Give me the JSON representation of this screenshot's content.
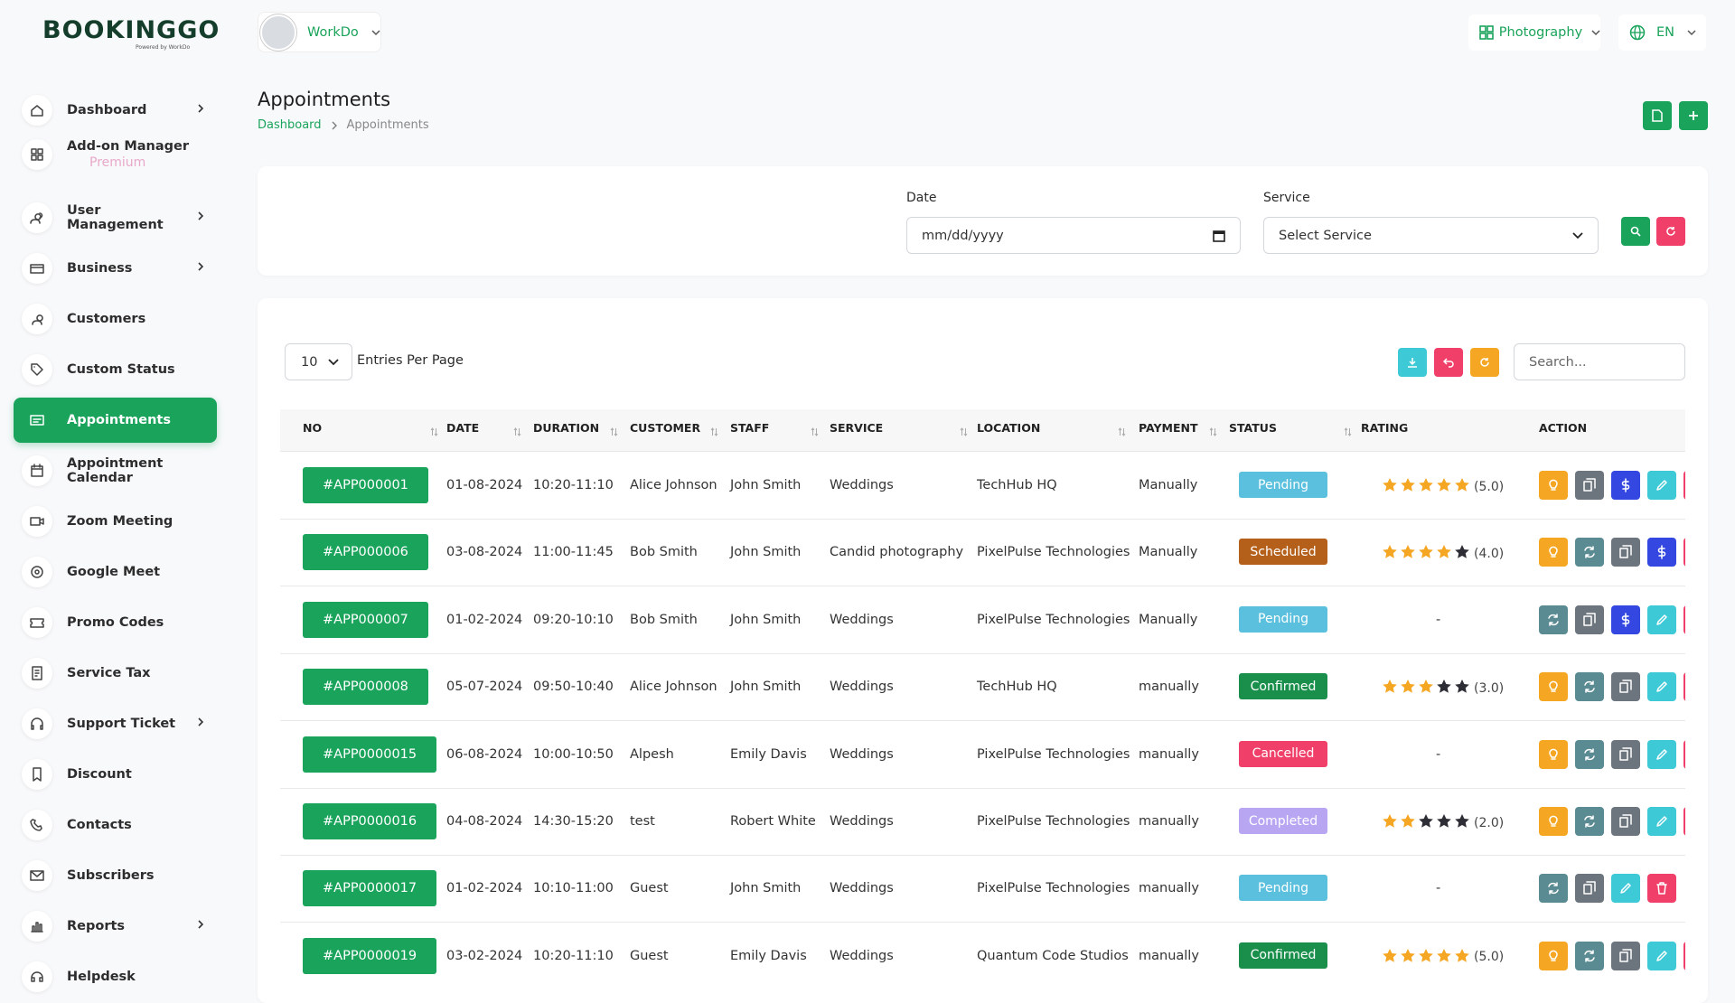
{
  "brand": {
    "logo": "BOOKINGGO",
    "tagline": "Powered by WorkDo"
  },
  "header": {
    "user": "WorkDo",
    "business": "Photography",
    "language": "EN"
  },
  "sidebar": [
    {
      "label": "Dashboard",
      "submenu": true
    },
    {
      "label": "Add-on Manager",
      "badge": "Premium"
    },
    {
      "label": "User Management",
      "submenu": true
    },
    {
      "label": "Business",
      "submenu": true
    },
    {
      "label": "Customers"
    },
    {
      "label": "Custom Status"
    },
    {
      "label": "Appointments",
      "active": true
    },
    {
      "label": "Appointment Calendar"
    },
    {
      "label": "Zoom Meeting"
    },
    {
      "label": "Google Meet"
    },
    {
      "label": "Promo Codes"
    },
    {
      "label": "Service Tax"
    },
    {
      "label": "Support Ticket",
      "submenu": true
    },
    {
      "label": "Discount"
    },
    {
      "label": "Contacts"
    },
    {
      "label": "Subscribers"
    },
    {
      "label": "Reports",
      "submenu": true
    },
    {
      "label": "Helpdesk"
    }
  ],
  "page": {
    "title": "Appointments",
    "breadcrumb": [
      "Dashboard",
      "Appointments"
    ]
  },
  "filters": {
    "date_label": "Date",
    "date_placeholder": "mm/dd/yyyy",
    "service_label": "Service",
    "service_placeholder": "Select Service"
  },
  "table": {
    "entries": "10",
    "entries_label": "Entries Per Page",
    "search_placeholder": "Search...",
    "columns": [
      "NO",
      "DATE",
      "DURATION",
      "CUSTOMER",
      "STAFF",
      "SERVICE",
      "LOCATION",
      "PAYMENT",
      "STATUS",
      "RATING",
      "ACTION"
    ],
    "status_colors": {
      "Pending": "#5bc0de",
      "Scheduled": "#b4601a",
      "Confirmed": "#1a8f4c",
      "Cancelled": "#f0406a",
      "Completed": "#b9a6f3"
    },
    "rows": [
      {
        "no": "#APP000001",
        "date": "01-08-2024",
        "duration": "10:20-11:10",
        "customer": "Alice Johnson",
        "staff": "John Smith",
        "service": "Weddings",
        "location": "TechHub HQ",
        "payment": "Manually",
        "status": "Pending",
        "rating": {
          "value": 5,
          "label": "(5.0)"
        }
      },
      {
        "no": "#APP000006",
        "date": "03-08-2024",
        "duration": "11:00-11:45",
        "customer": "Bob Smith",
        "staff": "John Smith",
        "service": "Candid photography",
        "location": "PixelPulse Technologies",
        "payment": "Manually",
        "status": "Scheduled",
        "rating": {
          "value": 4,
          "label": "(4.0)"
        }
      },
      {
        "no": "#APP000007",
        "date": "01-02-2024",
        "duration": "09:20-10:10",
        "customer": "Bob Smith",
        "staff": "John Smith",
        "service": "Weddings",
        "location": "PixelPulse Technologies",
        "payment": "Manually",
        "status": "Pending",
        "rating": "-"
      },
      {
        "no": "#APP000008",
        "date": "05-07-2024",
        "duration": "09:50-10:40",
        "customer": "Alice Johnson",
        "staff": "John Smith",
        "service": "Weddings",
        "location": "TechHub HQ",
        "payment": "manually",
        "status": "Confirmed",
        "rating": {
          "value": 3,
          "label": "(3.0)"
        }
      },
      {
        "no": "#APP0000015",
        "date": "06-08-2024",
        "duration": "10:00-10:50",
        "customer": "Alpesh",
        "staff": "Emily Davis",
        "service": "Weddings",
        "location": "PixelPulse Technologies",
        "payment": "manually",
        "status": "Cancelled",
        "rating": "-"
      },
      {
        "no": "#APP0000016",
        "date": "04-08-2024",
        "duration": "14:30-15:20",
        "customer": "test",
        "staff": "Robert White",
        "service": "Weddings",
        "location": "PixelPulse Technologies",
        "payment": "manually",
        "status": "Completed",
        "rating": {
          "value": 2,
          "label": "(2.0)"
        }
      },
      {
        "no": "#APP0000017",
        "date": "01-02-2024",
        "duration": "10:10-11:00",
        "customer": "Guest",
        "staff": "John Smith",
        "service": "Weddings",
        "location": "PixelPulse Technologies",
        "payment": "manually",
        "status": "Pending",
        "rating": "-"
      },
      {
        "no": "#APP0000019",
        "date": "03-02-2024",
        "duration": "10:20-11:10",
        "customer": "Guest",
        "staff": "Emily Davis",
        "service": "Weddings",
        "location": "Quantum Code Studios",
        "payment": "manually",
        "status": "Confirmed",
        "rating": {
          "value": 5,
          "label": "(5.0)"
        }
      }
    ]
  }
}
